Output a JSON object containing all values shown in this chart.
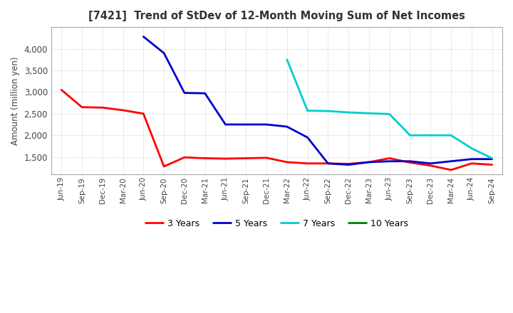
{
  "title": "[7421]  Trend of StDev of 12-Month Moving Sum of Net Incomes",
  "ylabel": "Amount (million yen)",
  "background_color": "#ffffff",
  "grid_color": "#c8c8c8",
  "x_labels": [
    "Jun-19",
    "Sep-19",
    "Dec-19",
    "Mar-20",
    "Jun-20",
    "Sep-20",
    "Dec-20",
    "Mar-21",
    "Jun-21",
    "Sep-21",
    "Dec-21",
    "Mar-22",
    "Jun-22",
    "Sep-22",
    "Dec-22",
    "Mar-23",
    "Jun-23",
    "Sep-23",
    "Dec-23",
    "Mar-24",
    "Jun-24",
    "Sep-24"
  ],
  "series": {
    "3 Years": {
      "color": "#ff0000",
      "data_y": [
        3050,
        2650,
        2640,
        2580,
        2500,
        1280,
        1490,
        1470,
        1460,
        1470,
        1480,
        1380,
        1350,
        1350,
        1340,
        1380,
        1470,
        1370,
        1300,
        1200,
        1350,
        1320
      ]
    },
    "5 Years": {
      "color": "#0000cc",
      "data_y": [
        null,
        null,
        null,
        null,
        4280,
        3900,
        2980,
        2970,
        2250,
        2250,
        2250,
        2200,
        1950,
        1350,
        1320,
        1380,
        1400,
        1400,
        1350,
        1400,
        1450,
        1450
      ]
    },
    "7 Years": {
      "color": "#00cccc",
      "data_y": [
        null,
        null,
        null,
        null,
        null,
        null,
        null,
        null,
        null,
        null,
        null,
        3750,
        2570,
        2560,
        2530,
        2510,
        2490,
        2000,
        2000,
        2000,
        1700,
        1470
      ]
    },
    "10 Years": {
      "color": "#008000",
      "data_y": [
        null,
        null,
        null,
        null,
        null,
        null,
        null,
        null,
        null,
        null,
        null,
        null,
        null,
        null,
        null,
        null,
        null,
        null,
        null,
        null,
        null,
        null
      ]
    }
  },
  "ylim": [
    1100,
    4500
  ],
  "yticks": [
    1500,
    2000,
    2500,
    3000,
    3500,
    4000
  ],
  "line_width": 2.0
}
